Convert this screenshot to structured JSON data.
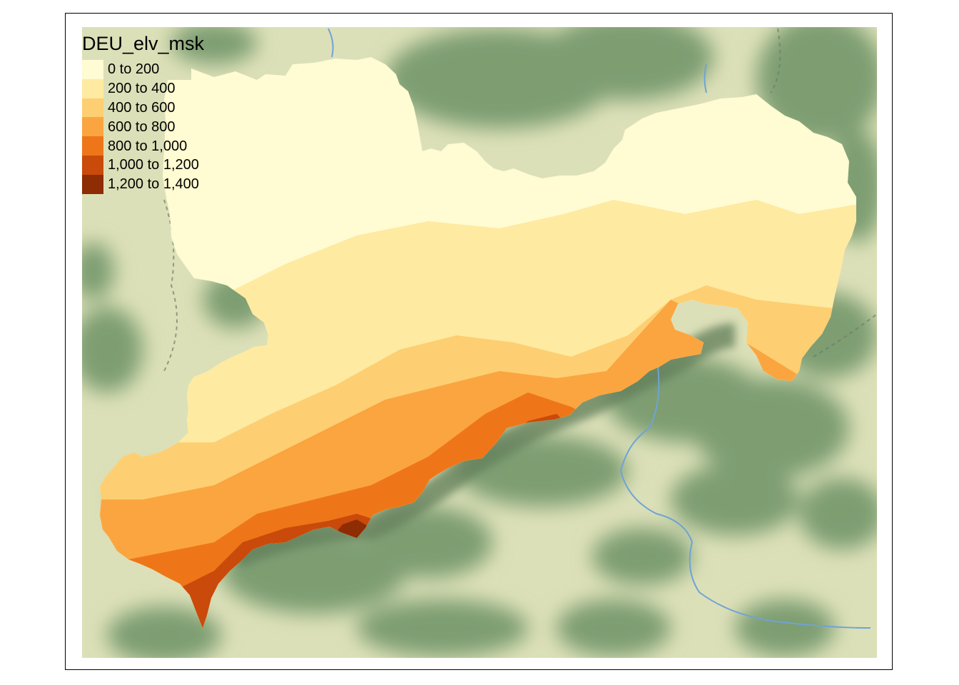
{
  "legend": {
    "title": "DEU_elv_msk",
    "classes": [
      {
        "label": "0 to 200",
        "color": "#FFFBD2"
      },
      {
        "label": "200 to 400",
        "color": "#FEEAA1"
      },
      {
        "label": "400 to 600",
        "color": "#FDCF72"
      },
      {
        "label": "600 to 800",
        "color": "#FBA540"
      },
      {
        "label": "800 to 1,000",
        "color": "#EE7619"
      },
      {
        "label": "1,000 to 1,200",
        "color": "#C94A0A"
      },
      {
        "label": "1,200 to 1,400",
        "color": "#8E2C04"
      }
    ]
  },
  "basemap": {
    "lowland_color": "#DCE0B8",
    "forest_color": "#7E9E72",
    "river_color": "#6FA3D6",
    "border_color": "#6E7A6A"
  }
}
